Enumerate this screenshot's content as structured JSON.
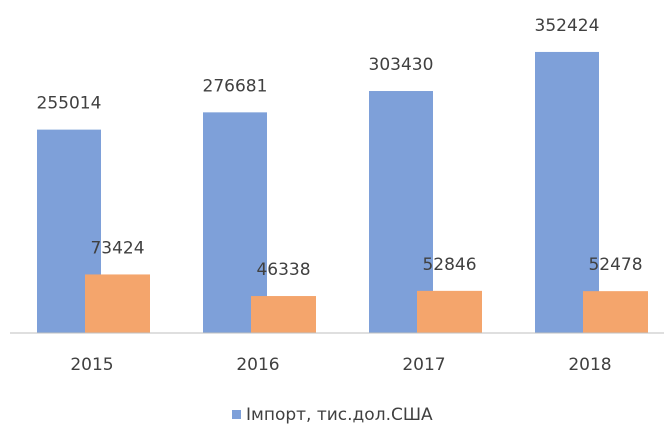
{
  "chart_data": {
    "type": "bar",
    "categories": [
      "2015",
      "2016",
      "2017",
      "2018"
    ],
    "series": [
      {
        "name": "Імпорт, тис.дол.США",
        "color": "#7ea0d9",
        "values": [
          255014,
          276681,
          303430,
          352424
        ]
      },
      {
        "color": "#f4a56c",
        "values": [
          73424,
          46338,
          52846,
          52478
        ]
      }
    ],
    "ylim": [
      0,
      400000
    ]
  }
}
